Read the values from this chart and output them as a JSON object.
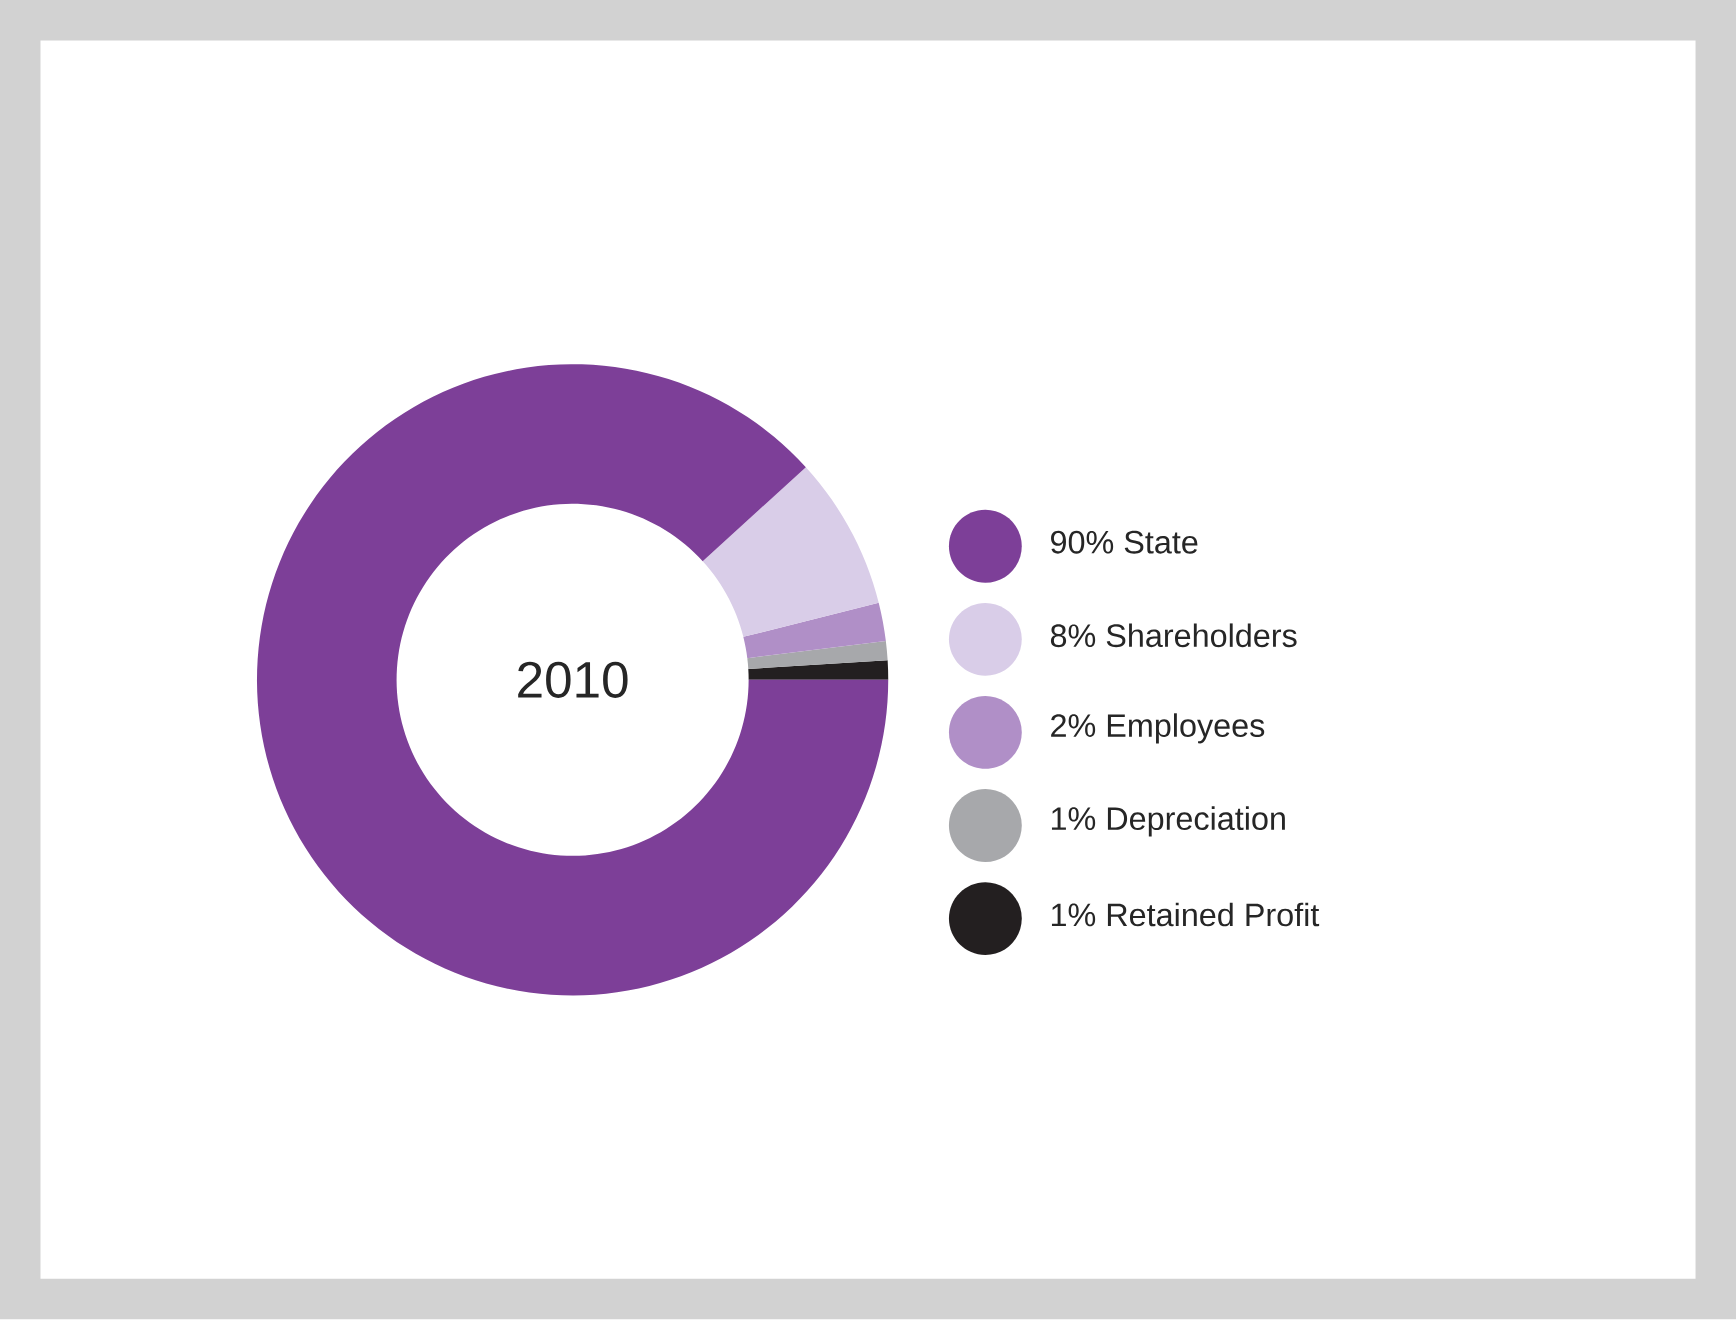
{
  "chart_data": {
    "type": "donut",
    "title": "2010",
    "categories": [
      "90% State",
      "8% Shareholders",
      "2% Employees",
      "1% Depreciation",
      "1% Retained Profit"
    ],
    "values": [
      90,
      8,
      2,
      1,
      1
    ],
    "colors": [
      "#7d3f98",
      "#d9cde8",
      "#b08fc7",
      "#a7a8ab",
      "#231f20"
    ],
    "legend": "right"
  }
}
